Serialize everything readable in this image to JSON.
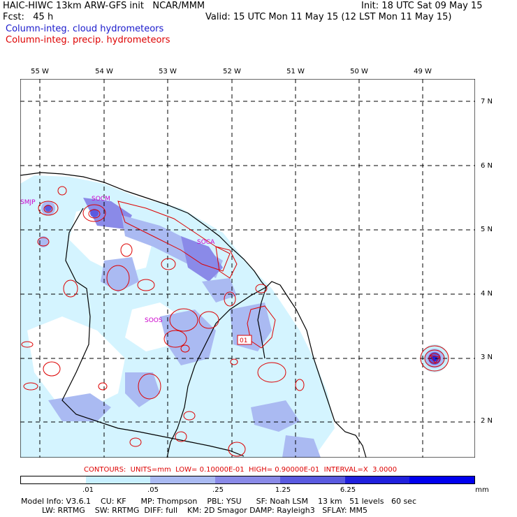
{
  "header": {
    "line1_left": "HAIC-HIWC 13km ARW-GFS init   NCAR/MMM",
    "line1_right": "Init: 18 UTC Sat 09 May 15",
    "line2_left": "Fcst:   45 h",
    "line2_right": "Valid: 15 UTC Mon 11 May 15 (12 LST Mon 11 May 15)",
    "field_shaded": "Column-integ. cloud hydrometeors",
    "field_contour": "Column-integ. precip. hydrometeors",
    "shaded_color": "#1a1acc",
    "contour_color": "#dd0000"
  },
  "map": {
    "longitude_labels": [
      "55 W",
      "54 W",
      "53 W",
      "52 W",
      "51 W",
      "50 W",
      "49 W"
    ],
    "latitude_labels": [
      "7 N",
      "6 N",
      "5 N",
      "4 N",
      "3 N",
      "2 N"
    ],
    "stations": [
      "SMJP",
      "SOCM",
      "SOCA",
      "SOOS"
    ],
    "box_label": "01"
  },
  "contour_info": "CONTOURS:  UNITS=mm  LOW= 0.10000E-01  HIGH= 0.90000E-01  INTERVAL=X  3.0000",
  "legend": {
    "labels": [
      ".01",
      ".05",
      ".25",
      "1.25",
      "6.25",
      "mm"
    ],
    "colors": [
      "#ffffff",
      "#c8f0ff",
      "#aabaf2",
      "#8a8ae8",
      "#5a5ae0",
      "#2020dd",
      "#0000ee"
    ]
  },
  "model_info": {
    "line1": "Model Info: V3.6.1    CU: KF      MP: Thompson    PBL: YSU      SF: Noah LSM    13 km   51 levels   60 sec",
    "line2": "LW: RRTMG    SW: RRTMG  DIFF: full    KM: 2D Smagor DAMP: Rayleigh3   SFLAY: MM5"
  }
}
